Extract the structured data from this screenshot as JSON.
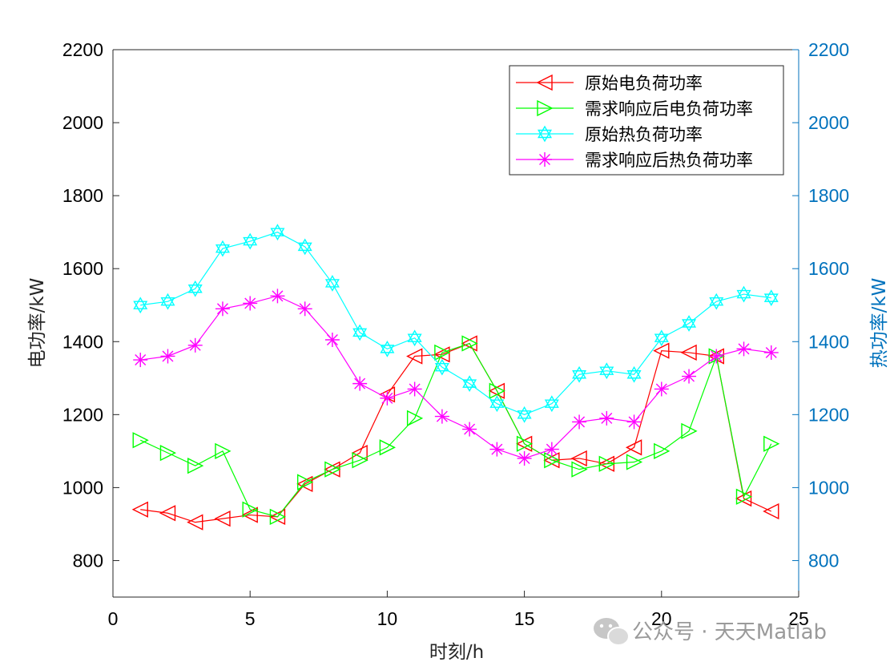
{
  "chart_data": {
    "type": "line",
    "xlabel": "时刻/h",
    "ylabel_left": "电功率/kW",
    "ylabel_right": "热功率/kW",
    "xlim": [
      0,
      25
    ],
    "ylim": [
      700,
      2200
    ],
    "xticks": [
      0,
      5,
      10,
      15,
      20,
      25
    ],
    "yticks": [
      800,
      1000,
      1200,
      1400,
      1600,
      1800,
      2000,
      2200
    ],
    "grid": false,
    "legend_position": "top-right",
    "x": [
      1,
      2,
      3,
      4,
      5,
      6,
      7,
      8,
      9,
      10,
      11,
      12,
      13,
      14,
      15,
      16,
      17,
      18,
      19,
      20,
      21,
      22,
      23,
      24
    ],
    "series": [
      {
        "name": "原始电负荷功率",
        "axis": "left",
        "color": "#ff0000",
        "marker": "triangle-left",
        "values": [
          940,
          930,
          905,
          915,
          925,
          920,
          1010,
          1050,
          1095,
          1255,
          1360,
          1365,
          1395,
          1265,
          1120,
          1075,
          1080,
          1065,
          1110,
          1375,
          1370,
          1360,
          970,
          935
        ]
      },
      {
        "name": "需求响应后电负荷功率",
        "axis": "left",
        "color": "#00ff00",
        "marker": "triangle-right",
        "values": [
          1130,
          1095,
          1060,
          1100,
          940,
          920,
          1015,
          1050,
          1075,
          1110,
          1190,
          1370,
          1395,
          1265,
          1120,
          1075,
          1050,
          1065,
          1070,
          1100,
          1155,
          1360,
          975,
          1120
        ]
      },
      {
        "name": "原始热负荷功率",
        "axis": "right",
        "color": "#00ffff",
        "marker": "hexagram",
        "values": [
          1500,
          1510,
          1545,
          1655,
          1675,
          1700,
          1660,
          1560,
          1425,
          1380,
          1410,
          1330,
          1285,
          1230,
          1200,
          1230,
          1310,
          1320,
          1310,
          1410,
          1450,
          1510,
          1530,
          1520
        ]
      },
      {
        "name": "需求响应后热负荷功率",
        "axis": "right",
        "color": "#ff00ff",
        "marker": "asterisk",
        "values": [
          1350,
          1360,
          1390,
          1490,
          1505,
          1525,
          1490,
          1405,
          1285,
          1245,
          1270,
          1195,
          1160,
          1105,
          1080,
          1105,
          1180,
          1190,
          1180,
          1270,
          1305,
          1360,
          1380,
          1370
        ]
      }
    ],
    "colors": {
      "axis_left": "#262626",
      "axis_right": "#0072bd"
    }
  },
  "watermark": {
    "text": "公众号 · 天天Matlab",
    "icon": "wechat-icon"
  }
}
